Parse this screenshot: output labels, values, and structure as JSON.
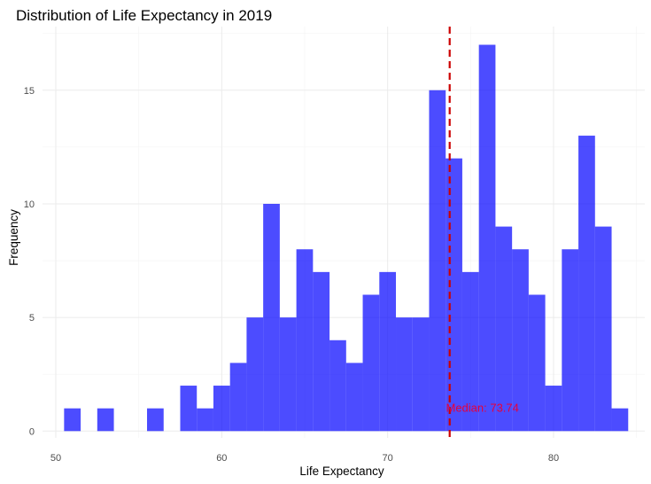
{
  "chart_data": {
    "type": "bar",
    "title": "Distribution of Life Expectancy in 2019",
    "xlabel": "Life Expectancy",
    "ylabel": "Frequency",
    "xlim": [
      49.2,
      85.5
    ],
    "ylim": [
      -0.3,
      17.8
    ],
    "x_ticks": [
      50,
      60,
      70,
      80
    ],
    "y_ticks": [
      0,
      5,
      10,
      15
    ],
    "grid": true,
    "bar_color": "#0000FF",
    "median_color": "#CC0000",
    "bins": [
      {
        "x0": 50.5,
        "x1": 51.5,
        "value": 1
      },
      {
        "x0": 51.5,
        "x1": 52.5,
        "value": 0
      },
      {
        "x0": 52.5,
        "x1": 53.5,
        "value": 1
      },
      {
        "x0": 53.5,
        "x1": 54.5,
        "value": 0
      },
      {
        "x0": 54.5,
        "x1": 55.5,
        "value": 0
      },
      {
        "x0": 55.5,
        "x1": 56.5,
        "value": 1
      },
      {
        "x0": 56.5,
        "x1": 57.5,
        "value": 0
      },
      {
        "x0": 57.5,
        "x1": 58.5,
        "value": 2
      },
      {
        "x0": 58.5,
        "x1": 59.5,
        "value": 1
      },
      {
        "x0": 59.5,
        "x1": 60.5,
        "value": 2
      },
      {
        "x0": 60.5,
        "x1": 61.5,
        "value": 3
      },
      {
        "x0": 61.5,
        "x1": 62.5,
        "value": 5
      },
      {
        "x0": 62.5,
        "x1": 63.5,
        "value": 10
      },
      {
        "x0": 63.5,
        "x1": 64.5,
        "value": 5
      },
      {
        "x0": 64.5,
        "x1": 65.5,
        "value": 8
      },
      {
        "x0": 65.5,
        "x1": 66.5,
        "value": 7
      },
      {
        "x0": 66.5,
        "x1": 67.5,
        "value": 4
      },
      {
        "x0": 67.5,
        "x1": 68.5,
        "value": 3
      },
      {
        "x0": 68.5,
        "x1": 69.5,
        "value": 6
      },
      {
        "x0": 69.5,
        "x1": 70.5,
        "value": 7
      },
      {
        "x0": 70.5,
        "x1": 71.5,
        "value": 5
      },
      {
        "x0": 71.5,
        "x1": 72.5,
        "value": 5
      },
      {
        "x0": 72.5,
        "x1": 73.5,
        "value": 15
      },
      {
        "x0": 73.5,
        "x1": 74.5,
        "value": 12
      },
      {
        "x0": 74.5,
        "x1": 75.5,
        "value": 7
      },
      {
        "x0": 75.5,
        "x1": 76.5,
        "value": 17
      },
      {
        "x0": 76.5,
        "x1": 77.5,
        "value": 9
      },
      {
        "x0": 77.5,
        "x1": 78.5,
        "value": 8
      },
      {
        "x0": 78.5,
        "x1": 79.5,
        "value": 6
      },
      {
        "x0": 79.5,
        "x1": 80.5,
        "value": 2
      },
      {
        "x0": 80.5,
        "x1": 81.5,
        "value": 8
      },
      {
        "x0": 81.5,
        "x1": 82.5,
        "value": 13
      },
      {
        "x0": 82.5,
        "x1": 83.5,
        "value": 9
      },
      {
        "x0": 83.5,
        "x1": 84.5,
        "value": 1
      }
    ],
    "median": {
      "value": 73.74,
      "label": "Median: 73.74",
      "label_y": 1
    }
  }
}
